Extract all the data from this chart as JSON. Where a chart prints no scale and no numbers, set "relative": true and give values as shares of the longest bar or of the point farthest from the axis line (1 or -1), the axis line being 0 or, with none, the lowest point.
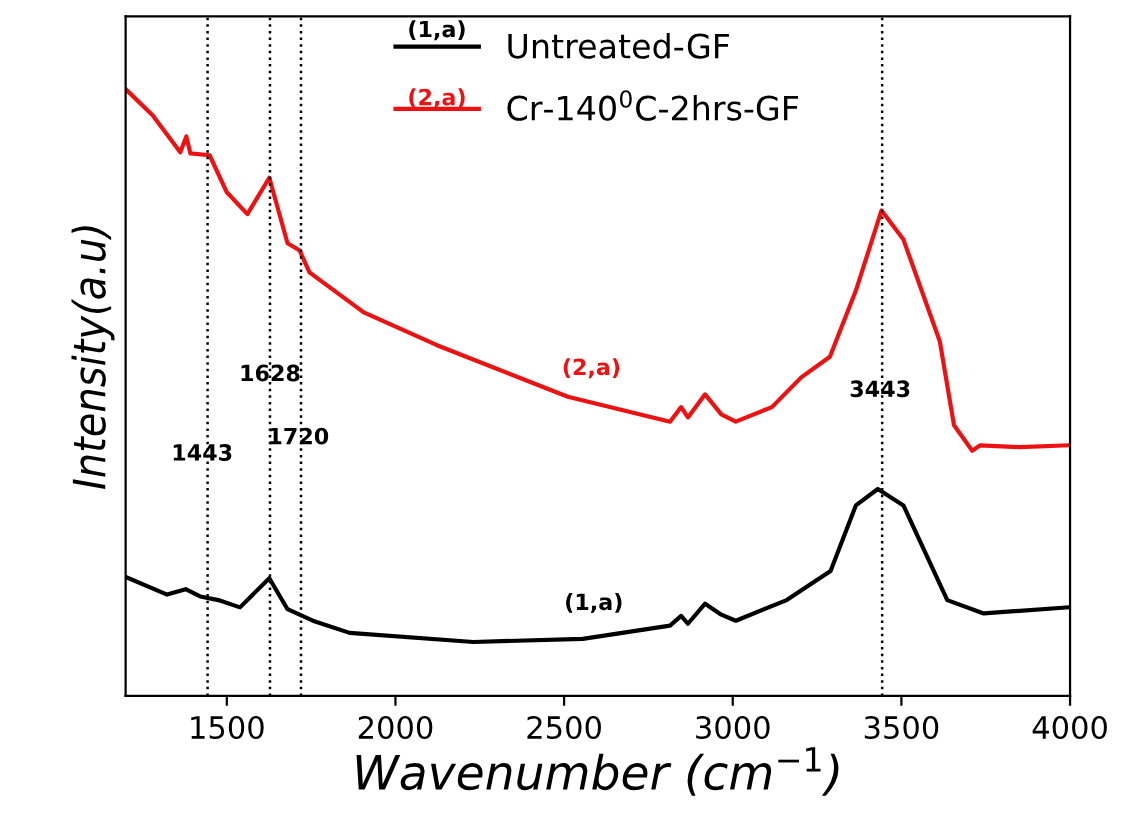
{
  "chart_data": {
    "type": "line",
    "relative": true,
    "xlabel": "Wavenumber (cm$^{−1}$)",
    "ylabel": "Intensity(a.u)",
    "xlim": [
      1200,
      4000
    ],
    "xticks": [
      1500,
      2000,
      2500,
      3000,
      3500,
      4000
    ],
    "legend": "top",
    "grid": false,
    "marker": "none",
    "line_style": "solid",
    "series": [
      {
        "name": "Untreated-GF",
        "color": "#000000",
        "x": [
          1200,
          1323,
          1378,
          1421,
          1475,
          1539,
          1626,
          1680,
          1755,
          1864,
          2231,
          2555,
          2814,
          2847,
          2867,
          2918,
          2966,
          3009,
          3160,
          3290,
          3365,
          3430,
          3506,
          3636,
          3744,
          3992
        ],
        "values": [
          0.196,
          0.167,
          0.176,
          0.164,
          0.158,
          0.146,
          0.194,
          0.143,
          0.124,
          0.104,
          0.089,
          0.094,
          0.116,
          0.132,
          0.119,
          0.152,
          0.134,
          0.124,
          0.158,
          0.206,
          0.314,
          0.341,
          0.314,
          0.158,
          0.136,
          0.146
        ]
      },
      {
        "name": "Cr-140$^{0}$C-2hrs-GF",
        "color": "#ee1111",
        "x": [
          1200,
          1280,
          1362,
          1380,
          1392,
          1449,
          1500,
          1561,
          1626,
          1680,
          1716,
          1745,
          1906,
          2123,
          2511,
          2814,
          2847,
          2867,
          2918,
          2966,
          3009,
          3116,
          3203,
          3288,
          3365,
          3441,
          3506,
          3614,
          3656,
          3710,
          3733,
          3852,
          3992
        ],
        "values": [
          1.0,
          0.957,
          0.896,
          0.922,
          0.894,
          0.891,
          0.83,
          0.794,
          0.854,
          0.746,
          0.734,
          0.698,
          0.632,
          0.578,
          0.493,
          0.452,
          0.476,
          0.459,
          0.497,
          0.464,
          0.452,
          0.476,
          0.525,
          0.559,
          0.668,
          0.8,
          0.752,
          0.584,
          0.446,
          0.404,
          0.413,
          0.41,
          0.413
        ]
      }
    ],
    "ref_lines": [
      {
        "axis": "x",
        "value": 1443,
        "color": "#000000",
        "line_style": "dotted"
      },
      {
        "axis": "x",
        "value": 1628,
        "color": "#000000",
        "line_style": "dotted"
      },
      {
        "axis": "x",
        "value": 1720,
        "color": "#000000",
        "line_style": "dotted"
      },
      {
        "axis": "x",
        "value": 3443,
        "color": "#000000",
        "line_style": "dotted"
      }
    ],
    "annotations": [
      "(1,a)",
      "(2,a)",
      {
        "text": "1443",
        "x": 1427,
        "y": 0.398
      },
      {
        "text": "1628",
        "x": 1628,
        "y": 0.529
      },
      {
        "text": "1720",
        "x": 1712,
        "y": 0.425
      },
      {
        "text": "3443",
        "x": 3437,
        "y": 0.503
      },
      {
        "text": "(2,a)",
        "x": 2581,
        "y": 0.484
      },
      {
        "text": "(1,a)",
        "x": 2588,
        "y": 0.097
      }
    ]
  }
}
